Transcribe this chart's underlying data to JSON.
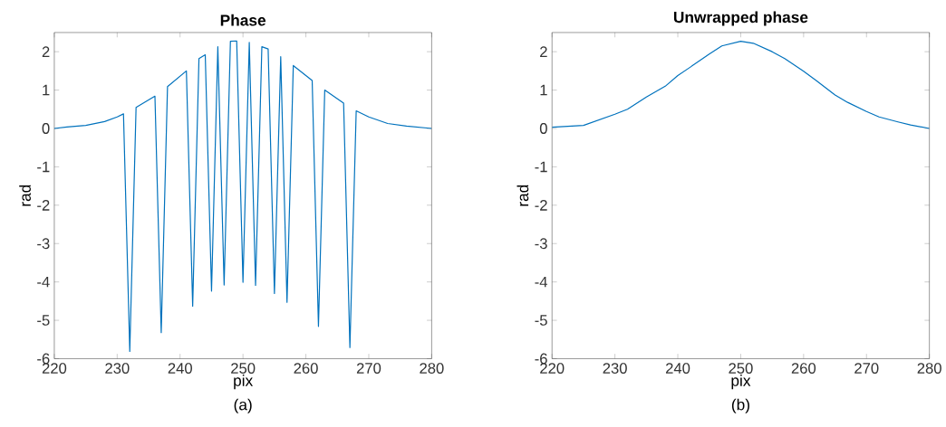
{
  "chart_data": [
    {
      "type": "line",
      "title": "Phase",
      "xlabel": "pix",
      "ylabel": "rad",
      "annotations": [
        "(a)"
      ],
      "xlim": [
        220,
        280
      ],
      "ylim": [
        -6,
        2.5
      ],
      "xticks": [
        220,
        230,
        240,
        250,
        260,
        270,
        280
      ],
      "yticks": [
        -6,
        -5,
        -4,
        -3,
        -2,
        -1,
        0,
        1,
        2
      ],
      "series": [
        {
          "color": "#0072bd",
          "x": [
            220,
            222,
            225,
            228,
            230,
            231,
            232,
            233,
            236,
            237,
            238,
            241,
            242,
            243,
            244,
            245,
            246,
            247,
            248,
            249,
            250,
            251,
            252,
            253,
            254,
            255,
            256,
            257,
            258,
            261,
            262,
            263,
            266,
            267,
            268,
            270,
            273,
            276,
            280
          ],
          "values": [
            0.0,
            0.04,
            0.08,
            0.18,
            0.3,
            0.38,
            -5.81,
            0.55,
            0.84,
            -5.32,
            1.09,
            1.5,
            -4.63,
            1.82,
            1.92,
            -4.24,
            2.13,
            -4.08,
            2.27,
            2.28,
            -4.01,
            2.24,
            -4.09,
            2.13,
            2.07,
            -4.3,
            1.87,
            -4.53,
            1.64,
            1.25,
            -5.16,
            1.0,
            0.66,
            -5.71,
            0.46,
            0.3,
            0.13,
            0.06,
            0.0
          ]
        }
      ]
    },
    {
      "type": "line",
      "title": "Unwrapped phase",
      "xlabel": "pix",
      "ylabel": "rad",
      "annotations": [
        "(b)"
      ],
      "xlim": [
        220,
        280
      ],
      "ylim": [
        -6,
        2.5
      ],
      "xticks": [
        220,
        230,
        240,
        250,
        260,
        270,
        280
      ],
      "yticks": [
        -6,
        -5,
        -4,
        -3,
        -2,
        -1,
        0,
        1,
        2
      ],
      "series": [
        {
          "color": "#0072bd",
          "x": [
            220,
            225,
            230,
            232,
            235,
            238,
            240,
            242,
            245,
            247,
            250,
            252,
            255,
            257,
            260,
            262,
            265,
            267,
            270,
            272,
            275,
            277,
            280
          ],
          "values": [
            0.03,
            0.08,
            0.37,
            0.5,
            0.82,
            1.1,
            1.38,
            1.6,
            1.94,
            2.15,
            2.27,
            2.22,
            2.0,
            1.82,
            1.49,
            1.25,
            0.87,
            0.68,
            0.44,
            0.3,
            0.17,
            0.09,
            0.0
          ]
        }
      ]
    }
  ]
}
